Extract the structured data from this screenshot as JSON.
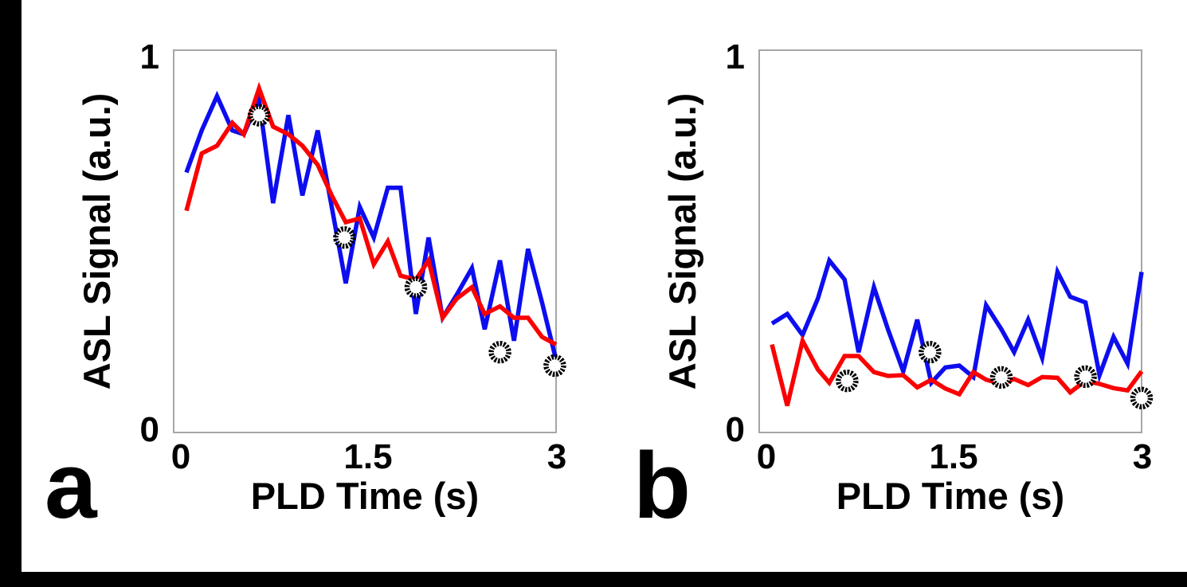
{
  "figure": {
    "background_color": "#FFFFFF",
    "frame_color": "#000000",
    "axis_box_color": "#A6A6A6",
    "panels": [
      {
        "letter": "a"
      },
      {
        "letter": "b"
      }
    ]
  },
  "chart_data": [
    {
      "type": "line",
      "panel": "a",
      "xlabel": "PLD Time (s)",
      "ylabel": "ASL Signal (a.u.)",
      "xlim": [
        0,
        3
      ],
      "ylim": [
        0,
        1
      ],
      "xticks": [
        0,
        1.5,
        3
      ],
      "xtick_labels": [
        "0",
        "1.5",
        "3"
      ],
      "ytick_labels": [
        "1",
        "0"
      ],
      "grid": false,
      "legend": "none",
      "x": [
        0.1,
        0.22,
        0.34,
        0.46,
        0.55,
        0.67,
        0.78,
        0.9,
        1.01,
        1.13,
        1.24,
        1.35,
        1.46,
        1.57,
        1.68,
        1.78,
        1.9,
        2.0,
        2.11,
        2.22,
        2.34,
        2.44,
        2.56,
        2.67,
        2.78,
        2.89,
        3.0
      ],
      "series": [
        {
          "name": "blue-line",
          "color": "#0D0DF0",
          "width": 5.5,
          "values": [
            0.68,
            0.79,
            0.88,
            0.79,
            0.78,
            0.87,
            0.6,
            0.83,
            0.62,
            0.79,
            0.59,
            0.39,
            0.59,
            0.51,
            0.64,
            0.64,
            0.31,
            0.51,
            0.3,
            0.36,
            0.43,
            0.27,
            0.45,
            0.24,
            0.48,
            0.34,
            0.19
          ]
        },
        {
          "name": "red-line",
          "color": "#FB0000",
          "width": 5.5,
          "values": [
            0.58,
            0.73,
            0.75,
            0.81,
            0.78,
            0.9,
            0.8,
            0.78,
            0.75,
            0.7,
            0.62,
            0.55,
            0.56,
            0.44,
            0.5,
            0.41,
            0.4,
            0.45,
            0.3,
            0.35,
            0.38,
            0.31,
            0.33,
            0.3,
            0.3,
            0.25,
            0.23
          ]
        }
      ],
      "scatter": {
        "name": "open-dotted-circles",
        "stroke_color": "#000000",
        "fill_color": "#FFFFFF",
        "x": [
          0.67,
          1.34,
          1.9,
          2.56,
          2.99
        ],
        "y": [
          0.83,
          0.51,
          0.38,
          0.21,
          0.175
        ]
      }
    },
    {
      "type": "line",
      "panel": "b",
      "xlabel": "PLD Time (s)",
      "ylabel": "ASL Signal (a.u.)",
      "xlim": [
        0,
        3
      ],
      "ylim": [
        0,
        1
      ],
      "xticks": [
        0,
        1.5,
        3
      ],
      "xtick_labels": [
        "0",
        "1.5",
        "3"
      ],
      "ytick_labels": [
        "1",
        "0"
      ],
      "grid": false,
      "legend": "none",
      "x": [
        0.1,
        0.22,
        0.34,
        0.46,
        0.55,
        0.67,
        0.78,
        0.9,
        1.01,
        1.13,
        1.24,
        1.35,
        1.46,
        1.57,
        1.68,
        1.78,
        1.9,
        2.0,
        2.11,
        2.22,
        2.34,
        2.44,
        2.56,
        2.67,
        2.78,
        2.89,
        3.0
      ],
      "series": [
        {
          "name": "blue-line",
          "color": "#0D0DF0",
          "width": 5.5,
          "values": [
            0.285,
            0.31,
            0.255,
            0.35,
            0.45,
            0.4,
            0.21,
            0.38,
            0.27,
            0.16,
            0.295,
            0.13,
            0.17,
            0.175,
            0.145,
            0.333,
            0.27,
            0.21,
            0.295,
            0.195,
            0.42,
            0.355,
            0.34,
            0.15,
            0.25,
            0.18,
            0.42
          ]
        },
        {
          "name": "red-line",
          "color": "#FB0000",
          "width": 5.5,
          "values": [
            0.23,
            0.07,
            0.24,
            0.165,
            0.13,
            0.2,
            0.2,
            0.158,
            0.148,
            0.15,
            0.118,
            0.138,
            0.115,
            0.1,
            0.158,
            0.138,
            0.127,
            0.14,
            0.124,
            0.145,
            0.143,
            0.105,
            0.135,
            0.127,
            0.116,
            0.11,
            0.16
          ]
        }
      ],
      "scatter": {
        "name": "open-dotted-circles",
        "stroke_color": "#000000",
        "fill_color": "#FFFFFF",
        "x": [
          0.69,
          1.34,
          1.9,
          2.56,
          3.0
        ],
        "y": [
          0.135,
          0.21,
          0.144,
          0.146,
          0.09
        ]
      }
    }
  ]
}
